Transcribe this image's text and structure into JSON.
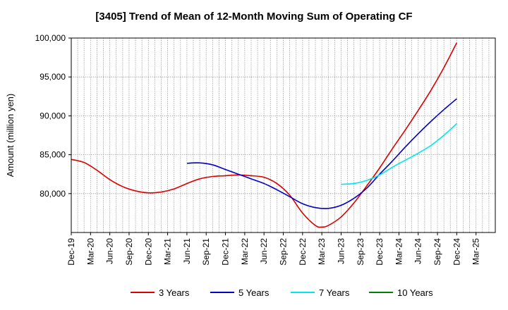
{
  "chart_data": {
    "type": "line",
    "title": "[3405]  Trend of Mean of 12-Month Moving Sum of Operating CF",
    "xlabel": "",
    "ylabel": "Amount (million yen)",
    "ylim": [
      75000,
      100000
    ],
    "yticks": [
      80000,
      85000,
      90000,
      95000,
      100000
    ],
    "ytick_labels": [
      "80,000",
      "85,000",
      "90,000",
      "95,000",
      "100,000"
    ],
    "x_range_months": [
      0,
      66
    ],
    "xticks": [
      {
        "label": "Dec-19",
        "month": 0
      },
      {
        "label": "Mar-20",
        "month": 3
      },
      {
        "label": "Jun-20",
        "month": 6
      },
      {
        "label": "Sep-20",
        "month": 9
      },
      {
        "label": "Dec-20",
        "month": 12
      },
      {
        "label": "Mar-21",
        "month": 15
      },
      {
        "label": "Jun-21",
        "month": 18
      },
      {
        "label": "Sep-21",
        "month": 21
      },
      {
        "label": "Dec-21",
        "month": 24
      },
      {
        "label": "Mar-22",
        "month": 27
      },
      {
        "label": "Jun-22",
        "month": 30
      },
      {
        "label": "Sep-22",
        "month": 33
      },
      {
        "label": "Dec-22",
        "month": 36
      },
      {
        "label": "Mar-23",
        "month": 39
      },
      {
        "label": "Jun-23",
        "month": 42
      },
      {
        "label": "Sep-23",
        "month": 45
      },
      {
        "label": "Dec-23",
        "month": 48
      },
      {
        "label": "Mar-24",
        "month": 51
      },
      {
        "label": "Jun-24",
        "month": 54
      },
      {
        "label": "Sep-24",
        "month": 57
      },
      {
        "label": "Dec-24",
        "month": 60
      },
      {
        "label": "Mar-25",
        "month": 63
      }
    ],
    "grid": true,
    "legend_position": "bottom",
    "series": [
      {
        "name": "3 Years",
        "color": "#dd0000",
        "points": [
          [
            0,
            84400
          ],
          [
            2,
            84000
          ],
          [
            4,
            83000
          ],
          [
            6,
            81800
          ],
          [
            8,
            80900
          ],
          [
            10,
            80350
          ],
          [
            12,
            80100
          ],
          [
            14,
            80200
          ],
          [
            16,
            80600
          ],
          [
            18,
            81300
          ],
          [
            20,
            81900
          ],
          [
            22,
            82200
          ],
          [
            24,
            82300
          ],
          [
            26,
            82400
          ],
          [
            28,
            82300
          ],
          [
            30,
            82100
          ],
          [
            32,
            81300
          ],
          [
            34,
            79800
          ],
          [
            36,
            77500
          ],
          [
            38,
            75900
          ],
          [
            39,
            75700
          ],
          [
            40,
            75900
          ],
          [
            42,
            77000
          ],
          [
            44,
            78800
          ],
          [
            46,
            81000
          ],
          [
            48,
            83300
          ],
          [
            50,
            85800
          ],
          [
            52,
            88200
          ],
          [
            54,
            90700
          ],
          [
            56,
            93300
          ],
          [
            58,
            96200
          ],
          [
            60,
            99400
          ]
        ]
      },
      {
        "name": "5 Years",
        "color": "#0000cc",
        "points": [
          [
            18,
            83900
          ],
          [
            20,
            83950
          ],
          [
            22,
            83700
          ],
          [
            24,
            83100
          ],
          [
            26,
            82500
          ],
          [
            28,
            81900
          ],
          [
            30,
            81300
          ],
          [
            32,
            80500
          ],
          [
            34,
            79600
          ],
          [
            36,
            78700
          ],
          [
            38,
            78200
          ],
          [
            40,
            78100
          ],
          [
            42,
            78500
          ],
          [
            44,
            79400
          ],
          [
            46,
            80700
          ],
          [
            48,
            82500
          ],
          [
            50,
            84200
          ],
          [
            52,
            86000
          ],
          [
            54,
            87700
          ],
          [
            56,
            89300
          ],
          [
            58,
            90800
          ],
          [
            60,
            92200
          ]
        ]
      },
      {
        "name": "7 Years",
        "color": "#00e5ee",
        "points": [
          [
            42,
            81200
          ],
          [
            44,
            81300
          ],
          [
            46,
            81700
          ],
          [
            48,
            82400
          ],
          [
            50,
            83400
          ],
          [
            52,
            84300
          ],
          [
            54,
            85200
          ],
          [
            56,
            86200
          ],
          [
            58,
            87500
          ],
          [
            60,
            89000
          ]
        ]
      },
      {
        "name": "10 Years",
        "color": "#008000",
        "points": []
      }
    ]
  }
}
